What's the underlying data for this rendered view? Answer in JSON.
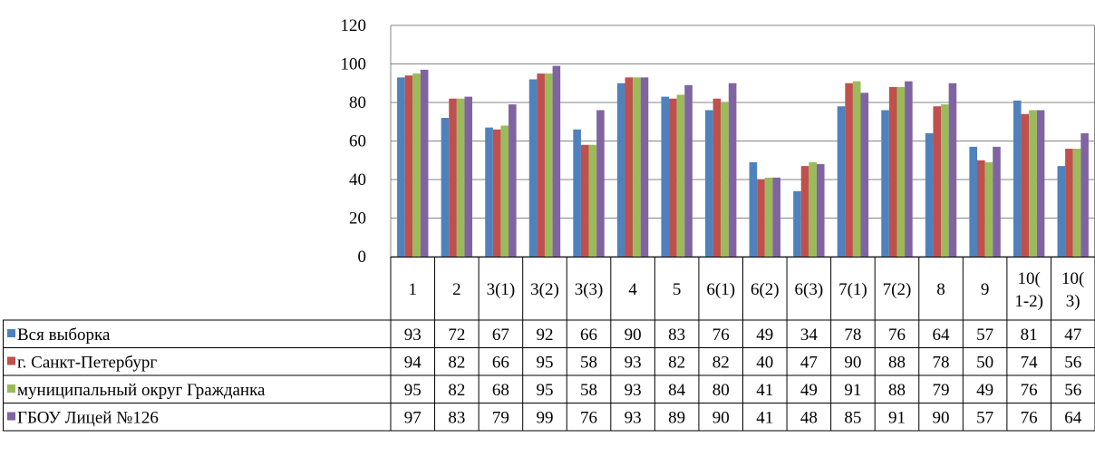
{
  "chart_data": {
    "type": "bar",
    "categories": [
      "1",
      "2",
      "3(1)",
      "3(2)",
      "3(3)",
      "4",
      "5",
      "6(1)",
      "6(2)",
      "6(3)",
      "7(1)",
      "7(2)",
      "8",
      "9",
      "10(1-2)",
      "10(3)"
    ],
    "category_label_lines": [
      [
        "1"
      ],
      [
        "2"
      ],
      [
        "3(1)"
      ],
      [
        "3(2)"
      ],
      [
        "3(3)"
      ],
      [
        "4"
      ],
      [
        "5"
      ],
      [
        "6(1)"
      ],
      [
        "6(2)"
      ],
      [
        "6(3)"
      ],
      [
        "7(1)"
      ],
      [
        "7(2)"
      ],
      [
        "8"
      ],
      [
        "9"
      ],
      [
        "10(",
        "1-2)"
      ],
      [
        "10(",
        "3)"
      ]
    ],
    "ylim": [
      0,
      120
    ],
    "yticks": [
      "0",
      "20",
      "40",
      "60",
      "80",
      "100",
      "120"
    ],
    "grid": true,
    "legend": "data-table-left",
    "series": [
      {
        "name": "Вся выборка",
        "color": "#4F81BD",
        "values": [
          93,
          72,
          67,
          92,
          66,
          90,
          83,
          76,
          49,
          34,
          78,
          76,
          64,
          57,
          81,
          47
        ]
      },
      {
        "name": "г. Санкт-Петербург",
        "color": "#C0504D",
        "values": [
          94,
          82,
          66,
          95,
          58,
          93,
          82,
          82,
          40,
          47,
          90,
          88,
          78,
          50,
          74,
          56
        ]
      },
      {
        "name": "муниципальный округ Гражданка",
        "color": "#9BBB59",
        "values": [
          95,
          82,
          68,
          95,
          58,
          93,
          84,
          80,
          41,
          49,
          91,
          88,
          79,
          49,
          76,
          56
        ]
      },
      {
        "name": "ГБОУ Лицей №126",
        "color": "#8064A2",
        "values": [
          97,
          83,
          79,
          99,
          76,
          93,
          89,
          90,
          41,
          48,
          85,
          91,
          90,
          57,
          76,
          64
        ]
      }
    ]
  }
}
